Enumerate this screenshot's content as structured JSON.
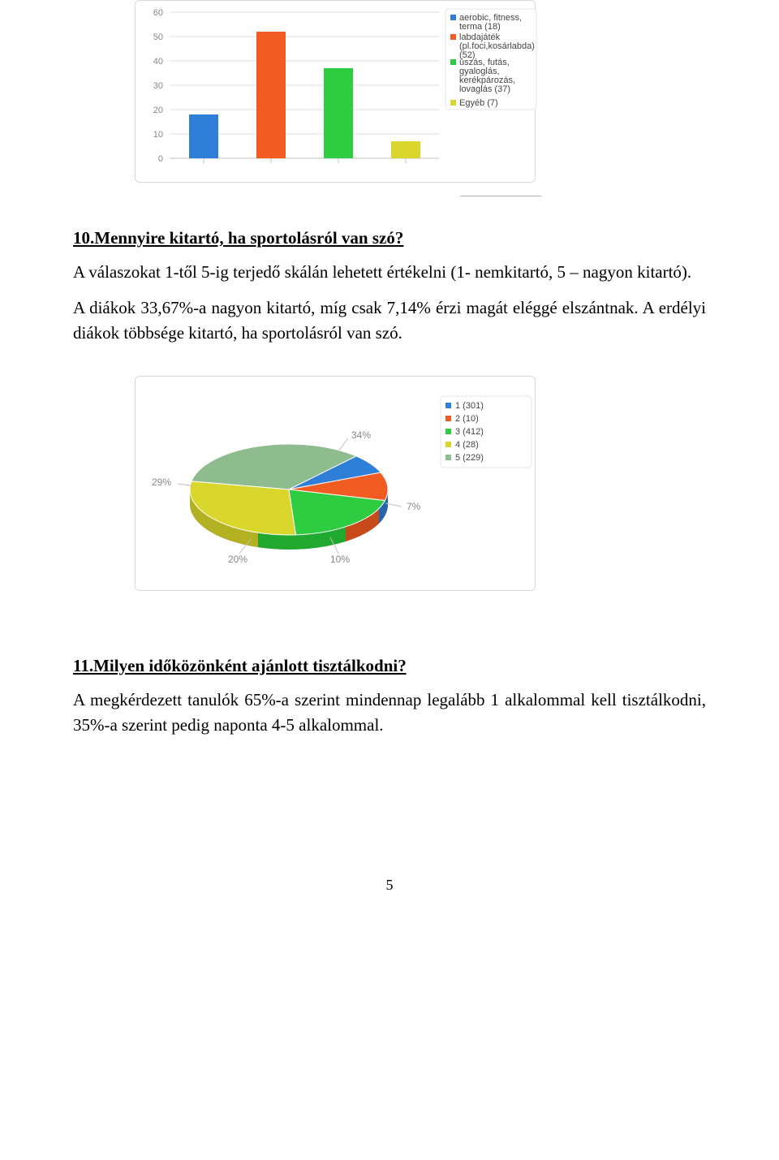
{
  "bar_chart": {
    "type": "bar",
    "values": [
      18,
      52,
      37,
      7
    ],
    "bar_colors": [
      "#2f7ed8",
      "#f15c22",
      "#2ecc40",
      "#d9d62e"
    ],
    "ylim": [
      0,
      60
    ],
    "ytick_step": 10,
    "yticks": [
      "0",
      "10",
      "20",
      "30",
      "40",
      "50",
      "60"
    ],
    "grid_color": "#dcdcdc",
    "axis_color": "#c0c0c0",
    "background": "#ffffff",
    "tick_font_color": "#878787",
    "tick_fontsize": 11,
    "bar_width": 0.42,
    "legend_bullets": [
      "#2f7ed8",
      "#f15c22",
      "#2ecc40",
      "#d9d62e"
    ],
    "legend": [
      "aerobic, fitness, terma (18)",
      "labdajáték (pl.foci,kosárlabda) (52)",
      "úszás, futás, gyaloglás, kerékpározás, lovaglás (37)",
      "Egyéb (7)"
    ]
  },
  "section10": {
    "title": "10.Mennyire kitartó, ha sportolásról van szó?",
    "p1": "A válaszokat 1-től 5-ig terjedő skálán lehetett értékelni (1- nemkitartó,  5 – nagyon kitartó).",
    "p2": "A diákok 33,67%-a nagyon kitartó, míg csak 7,14% érzi magát eléggé elszántnak. A erdélyi diákok többsége kitartó, ha sportolásról van szó."
  },
  "pie_chart": {
    "type": "pie",
    "slices": [
      {
        "label": "1 (301)",
        "pct": 29,
        "color": "#d9d62e"
      },
      {
        "label": "2 (10)",
        "pct": 20,
        "color": "#2ecc40"
      },
      {
        "label": "3 (412)",
        "pct": 10,
        "color": "#f15c22"
      },
      {
        "label": "4 (28)",
        "pct": 7,
        "color": "#2f7ed8"
      },
      {
        "label": "5 (229)",
        "pct": 34,
        "color": "#8fbc8f"
      }
    ],
    "legend_bullets": [
      "#2f7ed8",
      "#f15c22",
      "#2ecc40",
      "#d9d62e",
      "#8fbc8f"
    ],
    "legend": [
      "1 (301)",
      "2 (10)",
      "3 (412)",
      "4 (28)",
      "5 (229)"
    ],
    "label_positions": {
      "29%": "left",
      "20%": "bottom-left",
      "10%": "bottom-right",
      "7%": "right",
      "34%": "top-right"
    },
    "label_color": "#888888",
    "label_fontsize": 12,
    "background": "#ffffff"
  },
  "section11": {
    "title": "11.Milyen időközönként ajánlott tisztálkodni?",
    "p1": "A megkérdezett tanulók 65%-a szerint mindennap legalább 1 alkalommal kell tisztálkodni, 35%-a szerint pedig naponta 4-5 alkalommal."
  },
  "page_number": "5"
}
